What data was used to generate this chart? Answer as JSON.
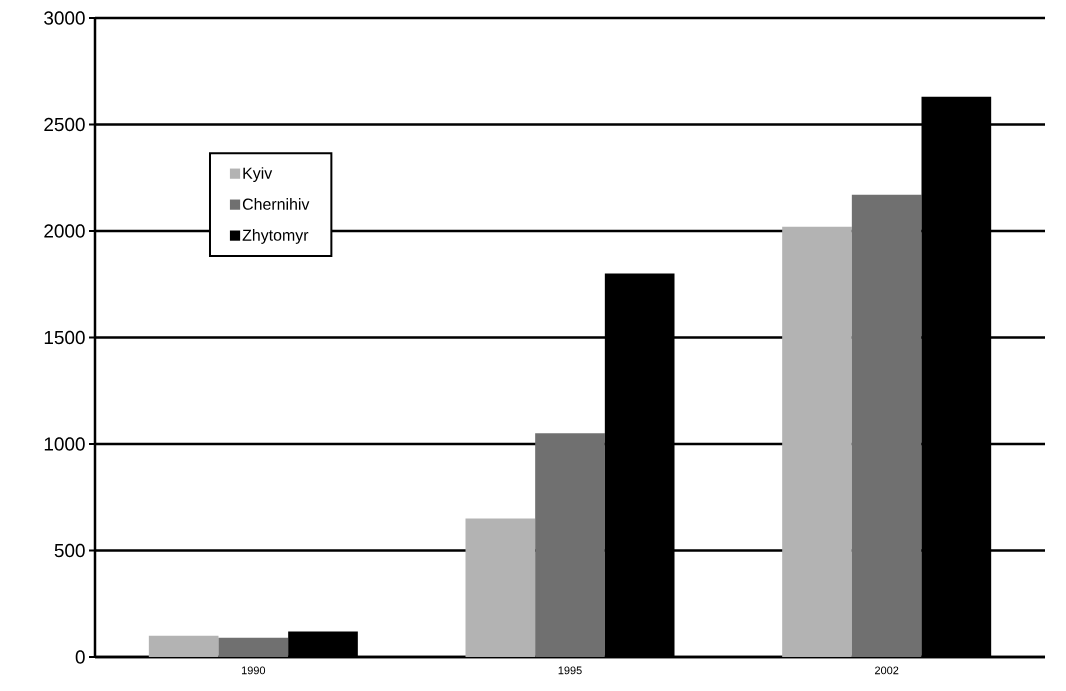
{
  "chart_data": {
    "type": "bar",
    "categories": [
      "1990",
      "1995",
      "2002"
    ],
    "series": [
      {
        "name": "Kyiv",
        "color": "#b3b3b3",
        "values": [
          100,
          650,
          2020
        ]
      },
      {
        "name": "Chernihiv",
        "color": "#707070",
        "values": [
          90,
          1050,
          2170
        ]
      },
      {
        "name": "Zhytomyr",
        "color": "#000000",
        "values": [
          120,
          1800,
          2630
        ]
      }
    ],
    "ylim": [
      0,
      3000
    ],
    "yticks": [
      0,
      500,
      1000,
      1500,
      2000,
      2500,
      3000
    ],
    "grid": "y",
    "legend": "top left"
  }
}
